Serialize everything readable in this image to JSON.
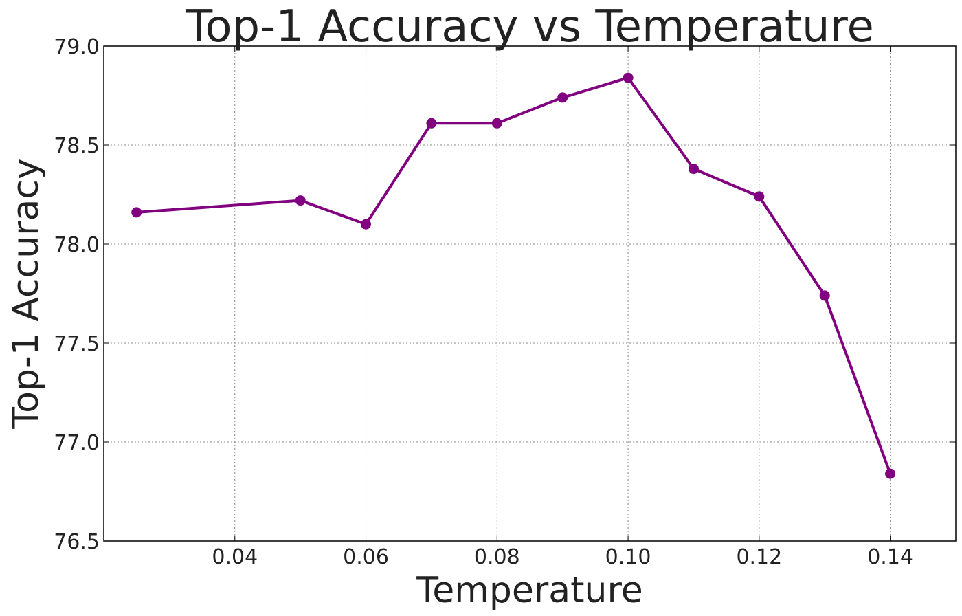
{
  "chart_data": {
    "type": "line",
    "title": "Top-1 Accuracy vs Temperature",
    "xlabel": "Temperature",
    "ylabel": "Top-1 Accuracy",
    "xlim": [
      0.02,
      0.15
    ],
    "ylim": [
      76.5,
      79.0
    ],
    "x_ticks": [
      0.04,
      0.06,
      0.08,
      0.1,
      0.12,
      0.14
    ],
    "x_tick_labels": [
      "0.04",
      "0.06",
      "0.08",
      "0.10",
      "0.12",
      "0.14"
    ],
    "y_ticks": [
      76.5,
      77.0,
      77.5,
      78.0,
      78.5,
      79.0
    ],
    "y_tick_labels": [
      "76.5",
      "77.0",
      "77.5",
      "78.0",
      "78.5",
      "79.0"
    ],
    "grid": true,
    "series": [
      {
        "color": "#800080",
        "marker": "circle",
        "x": [
          0.025,
          0.05,
          0.06,
          0.07,
          0.08,
          0.09,
          0.1,
          0.11,
          0.12,
          0.13,
          0.14
        ],
        "y": [
          78.16,
          78.22,
          78.1,
          78.61,
          78.61,
          78.74,
          78.84,
          78.38,
          78.24,
          77.74,
          76.84
        ]
      }
    ]
  }
}
